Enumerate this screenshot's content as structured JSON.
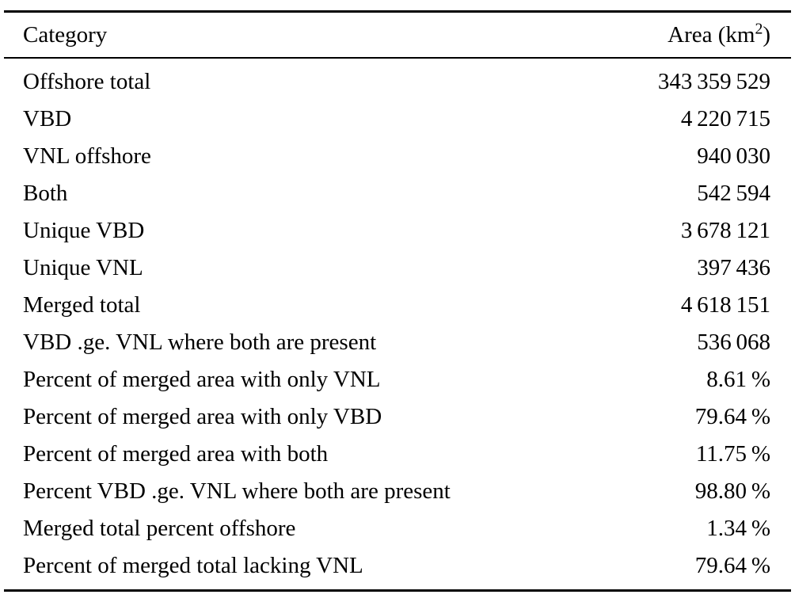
{
  "page": {
    "background": "#ffffff",
    "text_color": "#000000"
  },
  "table": {
    "header_category": "Category",
    "header_area_prefix": "Area (km",
    "header_area_sup": "2",
    "header_area_suffix": ")",
    "rows": [
      {
        "category": "Offshore total",
        "value": "343 359 529"
      },
      {
        "category": "VBD",
        "value": "4 220 715"
      },
      {
        "category": "VNL offshore",
        "value": "940 030"
      },
      {
        "category": "Both",
        "value": "542 594"
      },
      {
        "category": "Unique VBD",
        "value": "3 678 121"
      },
      {
        "category": "Unique VNL",
        "value": "397 436"
      },
      {
        "category": "Merged total",
        "value": "4 618 151"
      },
      {
        "category": "VBD .ge. VNL where both are present",
        "value": "536 068"
      },
      {
        "category": "Percent of merged area with only VNL",
        "value": "8.61 %"
      },
      {
        "category": "Percent of merged area with only VBD",
        "value": "79.64 %"
      },
      {
        "category": "Percent of merged area with both",
        "value": "11.75 %"
      },
      {
        "category": "Percent VBD .ge. VNL where both are present",
        "value": "98.80 %"
      },
      {
        "category": "Merged total percent offshore",
        "value": "1.34 %"
      },
      {
        "category": "Percent of merged total lacking VNL",
        "value": "79.64 %"
      }
    ]
  }
}
